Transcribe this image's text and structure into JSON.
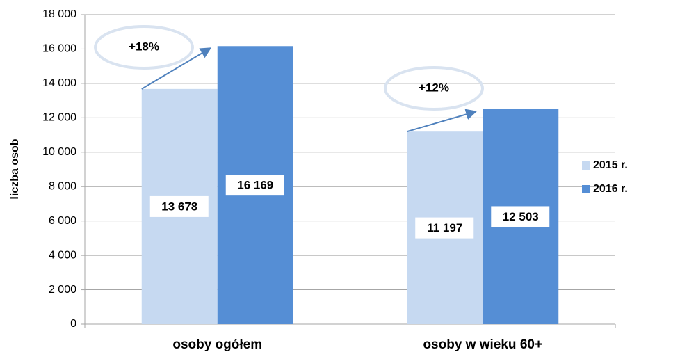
{
  "chart_data": {
    "type": "bar",
    "y_label": "liczba osob",
    "categories": [
      "osoby ogółem",
      "osoby w wieku 60+"
    ],
    "series": [
      {
        "name": "2015 r.",
        "color": "#c6d9f1",
        "values": [
          13678,
          11197
        ],
        "value_labels": [
          "13 678",
          "11 197"
        ]
      },
      {
        "name": "2016 r.",
        "color": "#558ed5",
        "values": [
          16169,
          12503
        ],
        "value_labels": [
          "16 169",
          "12 503"
        ]
      }
    ],
    "annotations": [
      "+18%",
      "+12%"
    ],
    "ylim": [
      0,
      18000
    ],
    "yticks": [
      0,
      {
        "value": 2000,
        "label": "2 000"
      },
      {
        "value": 4000,
        "label": "4 000"
      },
      {
        "value": 6000,
        "label": "6 000"
      },
      {
        "value": 8000,
        "label": "8 000"
      },
      {
        "value": 10000,
        "label": "10 000"
      },
      {
        "value": 12000,
        "label": "12 000"
      },
      {
        "value": 14000,
        "label": "14 000"
      },
      {
        "value": 16000,
        "label": "16 000"
      },
      {
        "value": 18000,
        "label": "18 000"
      }
    ],
    "grid": true,
    "legend": "right"
  }
}
